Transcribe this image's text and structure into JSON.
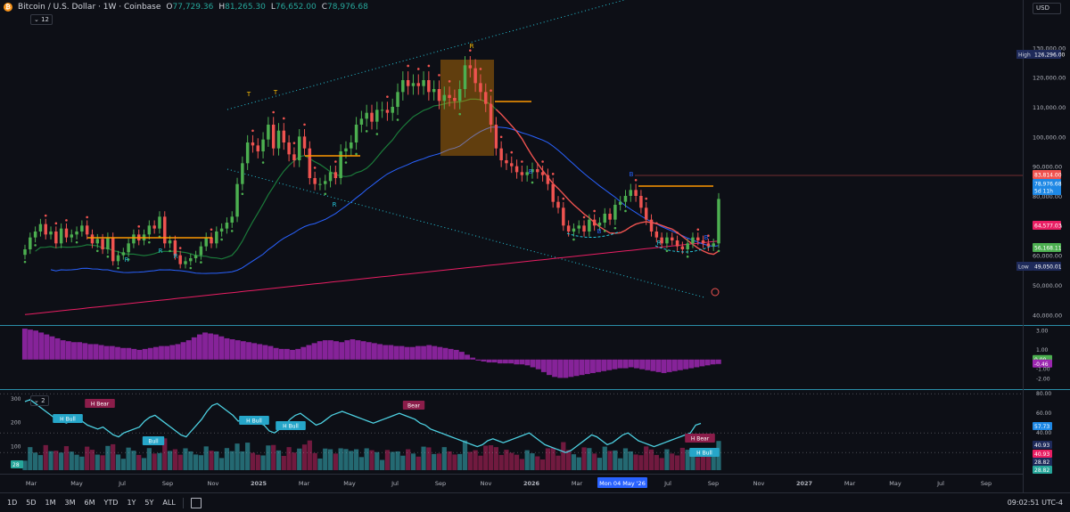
{
  "header": {
    "symbol": "Bitcoin / U.S. Dollar · 1W · Coinbase",
    "open_label": "O",
    "open": "77,729.36",
    "high_label": "H",
    "high": "81,265.30",
    "low_label": "L",
    "low": "76,652.00",
    "close_label": "C",
    "close": "78,976.68",
    "indicator_count": "12",
    "currency": "USD"
  },
  "colors": {
    "up": "#26a69a",
    "up_bright": "#4caf50",
    "down": "#ef5350",
    "orange": "#ff9800",
    "ma_green": "#1b7a3a",
    "ma_blue": "#2962ff",
    "ma_pink": "#e91e63",
    "histogram": "#9c27b0",
    "rsi_line": "#4dd0e1"
  },
  "chart_data": [
    {
      "type": "candlestick",
      "title": "",
      "x_tick_labels": [
        "Mar",
        "May",
        "Jul",
        "Sep",
        "Nov",
        "2025",
        "Mar",
        "May",
        "Jul",
        "Sep",
        "Nov",
        "2026",
        "Mar",
        "Mon 04 May '26",
        "Jul",
        "Sep",
        "Nov",
        "2027",
        "Mar",
        "May",
        "Jul",
        "Sep"
      ],
      "y_ticks": [
        40000,
        50000,
        60000,
        70000,
        80000,
        90000,
        100000,
        110000,
        120000,
        130000
      ],
      "y_tick_labels": [
        "40,000.00",
        "50,000.00",
        "60,000.00",
        "70,000.00",
        "80,000.00",
        "90,000.00",
        "100,000.00",
        "110,000.00",
        "120,000.00",
        "130,000.00"
      ],
      "ylim": [
        38000,
        140000
      ],
      "price_labels": [
        {
          "text": "High",
          "value": "126,296.00"
        },
        {
          "text": "",
          "value": "83,814.00"
        },
        {
          "text": "",
          "value": "78,976.68"
        },
        {
          "text": "",
          "value": "5d 11h"
        },
        {
          "text": "",
          "value": "64,577.03"
        },
        {
          "text": "",
          "value": "56,168.11"
        },
        {
          "text": "Low",
          "value": "49,050.01"
        }
      ],
      "annotations": [
        "T",
        "T",
        "R",
        "R",
        "R",
        "R",
        "R",
        "R",
        "B",
        "B",
        "B",
        "B"
      ],
      "closes": [
        62000,
        66000,
        68000,
        70500,
        67000,
        68000,
        64000,
        69000,
        66000,
        67000,
        68000,
        70000,
        67000,
        64000,
        65500,
        62000,
        66000,
        58000,
        60000,
        61000,
        64000,
        67000,
        65000,
        67000,
        70000,
        69000,
        73000,
        64000,
        65000,
        60000,
        57000,
        58000,
        59000,
        60000,
        63000,
        66000,
        64000,
        68000,
        69000,
        71000,
        73000,
        84000,
        91000,
        98000,
        97000,
        95000,
        99000,
        104000,
        96000,
        102000,
        98000,
        94000,
        92000,
        100000,
        96000,
        86000,
        84000,
        84000,
        85000,
        88000,
        86000,
        95000,
        96000,
        98000,
        104000,
        106000,
        108000,
        105000,
        109000,
        109000,
        108000,
        110000,
        115000,
        119000,
        117000,
        118000,
        117000,
        119000,
        115000,
        116000,
        112000,
        114000,
        113000,
        112000,
        116000,
        124000,
        123000,
        118000,
        115000,
        111000,
        104000,
        96000,
        92000,
        91000,
        90000,
        88000,
        87000,
        88000,
        89000,
        88000,
        87000,
        84000,
        78000,
        76000,
        70000,
        68000,
        69000,
        70000,
        68000,
        72000,
        70000,
        71000,
        74000,
        72000,
        77000,
        78000,
        80000,
        82000,
        80000,
        76000,
        72000,
        68000,
        66000,
        64000,
        66000,
        65000,
        63000,
        62000,
        64000,
        66000,
        65000,
        64000,
        63000,
        64000,
        78976
      ],
      "series": [
        {
          "name": "",
          "values": []
        }
      ]
    },
    {
      "type": "histogram",
      "y_ticks": [
        3.0,
        1.0,
        0.0,
        -0.46,
        -1.0,
        -2.0
      ],
      "y_tick_labels": [
        "3.00",
        "1.00",
        "0.00",
        "-0.46",
        "-1.00",
        "-2.00"
      ],
      "ylim": [
        -2.6,
        3.3
      ],
      "values": [
        3.2,
        3.1,
        3.0,
        2.8,
        2.6,
        2.4,
        2.2,
        2.0,
        1.9,
        1.8,
        1.8,
        1.7,
        1.6,
        1.6,
        1.5,
        1.4,
        1.4,
        1.3,
        1.2,
        1.2,
        1.1,
        1.0,
        1.1,
        1.2,
        1.3,
        1.4,
        1.4,
        1.5,
        1.6,
        1.8,
        2.0,
        2.3,
        2.6,
        2.8,
        2.7,
        2.6,
        2.4,
        2.2,
        2.1,
        2.0,
        1.9,
        1.8,
        1.7,
        1.6,
        1.5,
        1.4,
        1.2,
        1.1,
        1.1,
        1.0,
        1.1,
        1.3,
        1.5,
        1.7,
        1.9,
        2.0,
        2.0,
        1.9,
        1.8,
        2.0,
        2.1,
        2.0,
        1.9,
        1.8,
        1.7,
        1.6,
        1.5,
        1.5,
        1.4,
        1.4,
        1.3,
        1.3,
        1.4,
        1.4,
        1.5,
        1.4,
        1.3,
        1.2,
        1.1,
        1.0,
        0.8,
        0.5,
        0.2,
        -0.1,
        -0.2,
        -0.3,
        -0.3,
        -0.4,
        -0.4,
        -0.4,
        -0.5,
        -0.5,
        -0.6,
        -0.8,
        -1.0,
        -1.3,
        -1.6,
        -1.8,
        -1.9,
        -1.9,
        -1.8,
        -1.7,
        -1.6,
        -1.5,
        -1.4,
        -1.3,
        -1.2,
        -1.1,
        -1.0,
        -0.9,
        -0.9,
        -0.8,
        -0.9,
        -1.0,
        -1.1,
        -1.2,
        -1.3,
        -1.4,
        -1.3,
        -1.2,
        -1.1,
        -1.0,
        -0.9,
        -0.8,
        -0.7,
        -0.6,
        -0.5,
        -0.46
      ]
    },
    {
      "type": "bar+line",
      "y_ticks_left": [
        300,
        200,
        100
      ],
      "y_ticks_right": [
        80.0,
        60.0,
        40.0,
        20.0
      ],
      "y_tick_labels_right": [
        "80.00",
        "60.00",
        "40.00",
        "20.00"
      ],
      "right_labels": [
        "57.73",
        "40.93",
        "40.93",
        "28.82",
        "28.82"
      ],
      "left_label": "28",
      "annotations": [
        "H Bull",
        "H Bear",
        "H Bull",
        "Bull",
        "H Bull",
        "Bear",
        "H Bear",
        "H Bull"
      ],
      "rsi": [
        80,
        82,
        78,
        74,
        70,
        66,
        62,
        60,
        58,
        62,
        64,
        60,
        56,
        54,
        52,
        54,
        50,
        46,
        44,
        48,
        50,
        52,
        54,
        60,
        64,
        66,
        62,
        58,
        54,
        50,
        46,
        44,
        50,
        56,
        62,
        70,
        76,
        78,
        74,
        70,
        66,
        60,
        62,
        64,
        60,
        58,
        56,
        50,
        48,
        52,
        56,
        62,
        66,
        68,
        64,
        60,
        56,
        58,
        62,
        66,
        68,
        70,
        68,
        66,
        64,
        62,
        60,
        58,
        60,
        62,
        64,
        66,
        68,
        66,
        64,
        62,
        58,
        56,
        52,
        50,
        48,
        46,
        44,
        42,
        40,
        38,
        36,
        34,
        36,
        40,
        42,
        40,
        38,
        40,
        42,
        44,
        46,
        48,
        44,
        40,
        36,
        34,
        32,
        30,
        28,
        30,
        34,
        38,
        42,
        46,
        44,
        40,
        36,
        38,
        42,
        46,
        48,
        44,
        40,
        38,
        36,
        34,
        36,
        38,
        40,
        42,
        44,
        46,
        48,
        56,
        57.73
      ]
    }
  ]
}
